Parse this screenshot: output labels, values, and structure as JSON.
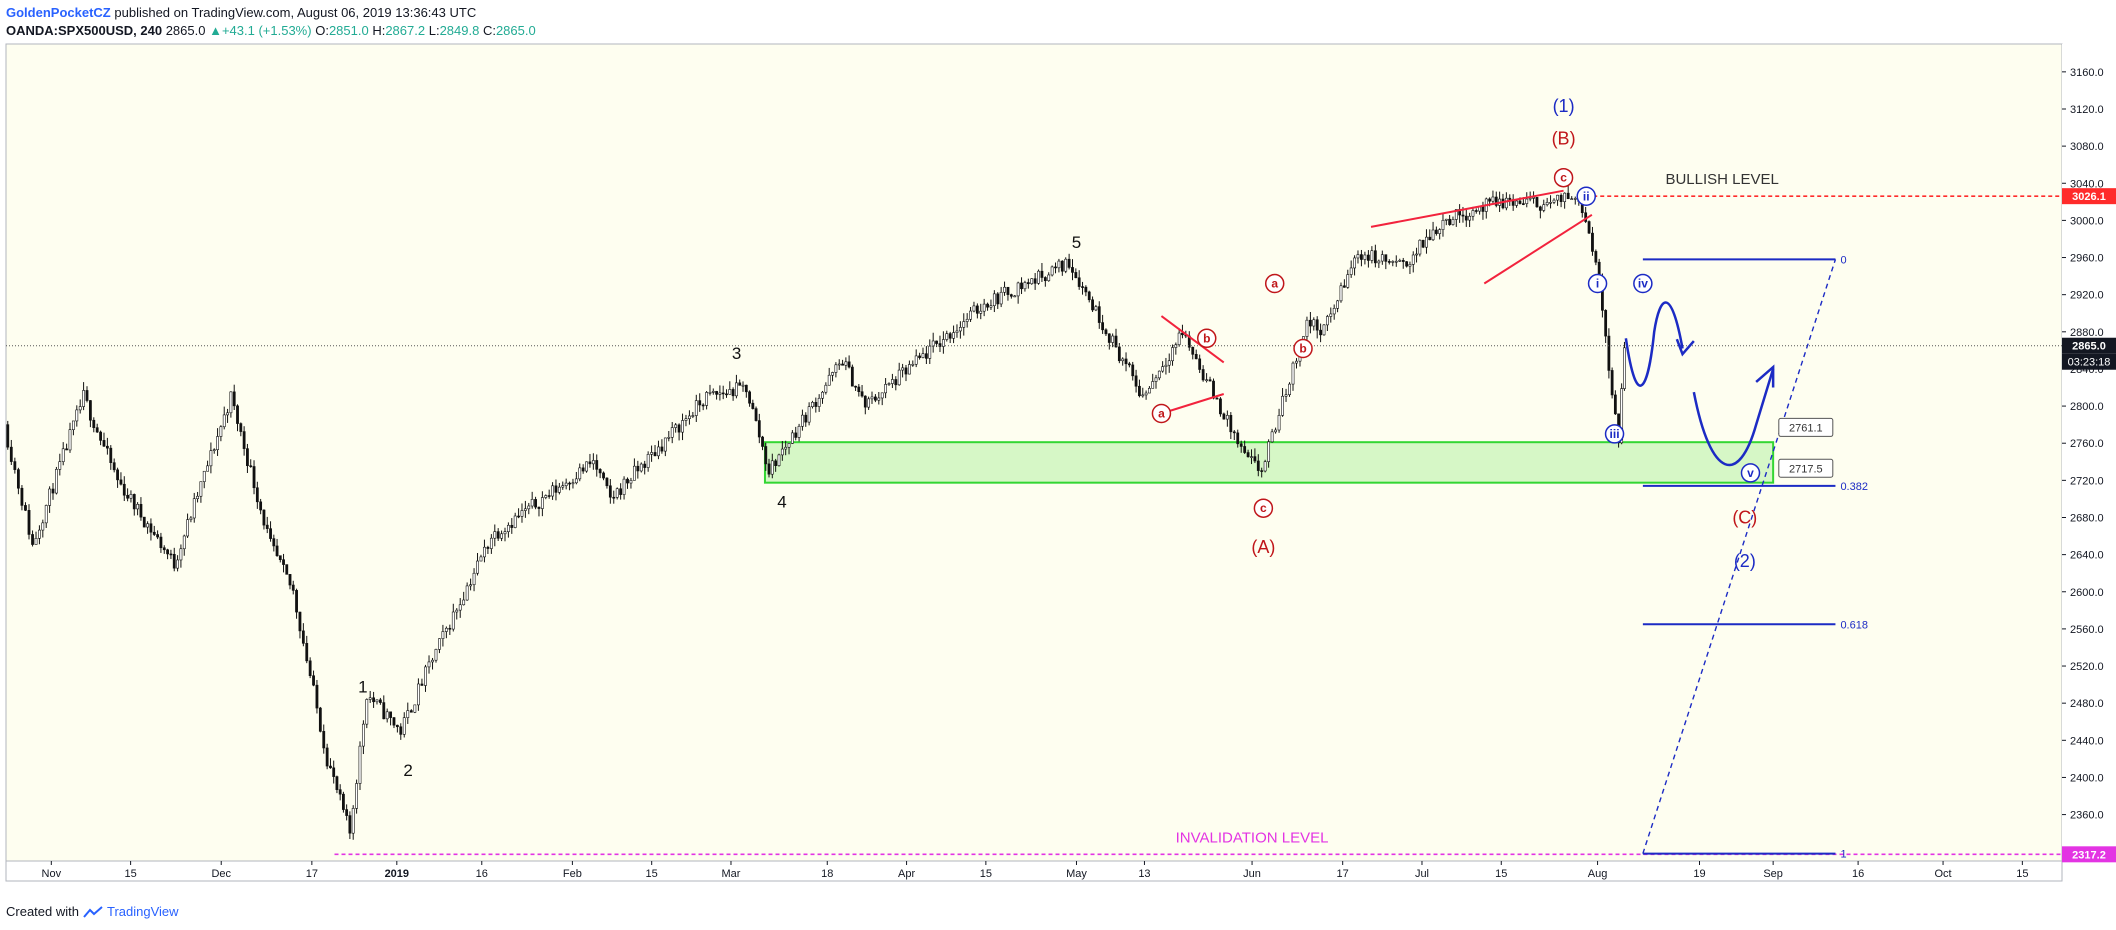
{
  "header": {
    "author": "GoldenPocketCZ",
    "published": "published on TradingView.com, August 06, 2019 13:36:43 UTC",
    "symbol": "OANDA:SPX500USD, 240",
    "last": "2865.0",
    "change": "+43.1 (+1.53%)",
    "o_label": "O:",
    "o": "2851.0",
    "h_label": "H:",
    "h": "2867.2",
    "l_label": "L:",
    "l": "2849.8",
    "c_label": "C:",
    "c": "2865.0"
  },
  "footer": {
    "created": "Created with",
    "brand": "TradingView"
  },
  "colors": {
    "background": "#fefef0",
    "candles": "#111111",
    "wave_red": "#c0161a",
    "wave_blue": "#1c2bc4",
    "trendline_red": "#f2233d",
    "zone_fill": "#d6f7c6",
    "zone_border": "#33d633",
    "bullish_line": "#ff2b2b",
    "invalidation": "#e334e3",
    "price_tag": "#131722"
  },
  "chart_data": {
    "type": "candlestick",
    "ylim": [
      2310,
      3190
    ],
    "yticks": [
      "3160.0",
      "3120.0",
      "3080.0",
      "3040.0",
      "3000.0",
      "2960.0",
      "2920.0",
      "2880.0",
      "2840.0",
      "2800.0",
      "2760.0",
      "2720.0",
      "2680.0",
      "2640.0",
      "2600.0",
      "2560.0",
      "2520.0",
      "2480.0",
      "2440.0",
      "2400.0",
      "2360.0"
    ],
    "xticks": [
      "Nov",
      "15",
      "Dec",
      "17",
      "2019",
      "16",
      "Feb",
      "15",
      "Mar",
      "18",
      "Apr",
      "15",
      "May",
      "13",
      "Jun",
      "17",
      "Jul",
      "15",
      "Aug",
      "19",
      "Sep",
      "16",
      "Oct",
      "15"
    ],
    "price_path": [
      [
        "2018-10-24",
        2780
      ],
      [
        "2018-10-29",
        2650
      ],
      [
        "2018-11-07",
        2810
      ],
      [
        "2018-11-13",
        2720
      ],
      [
        "2018-11-23",
        2630
      ],
      [
        "2018-12-03",
        2810
      ],
      [
        "2018-12-10",
        2650
      ],
      [
        "2018-12-14",
        2600
      ],
      [
        "2018-12-20",
        2420
      ],
      [
        "2018-12-24",
        2340
      ],
      [
        "2018-12-27",
        2490
      ],
      [
        "2019-01-02",
        2450
      ],
      [
        "2019-01-07",
        2520
      ],
      [
        "2019-01-18",
        2660
      ],
      [
        "2019-02-05",
        2740
      ],
      [
        "2019-02-08",
        2700
      ],
      [
        "2019-02-25",
        2810
      ],
      [
        "2019-03-04",
        2820
      ],
      [
        "2019-03-08",
        2730
      ],
      [
        "2019-03-21",
        2850
      ],
      [
        "2019-03-25",
        2800
      ],
      [
        "2019-04-15",
        2910
      ],
      [
        "2019-04-30",
        2955
      ],
      [
        "2019-05-13",
        2810
      ],
      [
        "2019-05-20",
        2880
      ],
      [
        "2019-05-31",
        2745
      ],
      [
        "2019-06-03",
        2730
      ],
      [
        "2019-06-11",
        2890
      ],
      [
        "2019-06-14",
        2882
      ],
      [
        "2019-06-20",
        2965
      ],
      [
        "2019-06-28",
        2950
      ],
      [
        "2019-07-05",
        3000
      ],
      [
        "2019-07-15",
        3020
      ],
      [
        "2019-07-24",
        3018
      ],
      [
        "2019-07-29",
        3028
      ],
      [
        "2019-08-01",
        2960
      ],
      [
        "2019-08-05",
        2760
      ],
      [
        "2019-08-06",
        2865
      ]
    ],
    "current_price": "2865.0",
    "countdown": "03:23:18",
    "levels": [
      {
        "label": "BULLISH LEVEL",
        "price": 3026.1,
        "tag": "3026.1"
      },
      {
        "label": "INVALIDATION LEVEL",
        "price": 2317.2,
        "tag": "2317.2"
      }
    ],
    "zone": {
      "top": 2761.1,
      "bottom": 2717.5,
      "top_label": "2761.1",
      "bottom_label": "2717.5"
    },
    "fibonacci": [
      {
        "label": "0",
        "price": 2958
      },
      {
        "label": "0.382",
        "price": 2714
      },
      {
        "label": "0.618",
        "price": 2565
      },
      {
        "label": "1",
        "price": 2318
      }
    ],
    "wave_labels": {
      "impulse": [
        {
          "text": "1",
          "date": "2018-12-26",
          "price": 2498
        },
        {
          "text": "2",
          "date": "2019-01-03",
          "price": 2408
        },
        {
          "text": "3",
          "date": "2019-03-02",
          "price": 2857
        },
        {
          "text": "4",
          "date": "2019-03-10",
          "price": 2697
        },
        {
          "text": "5",
          "date": "2019-05-01",
          "price": 2977
        }
      ],
      "red_circled": [
        {
          "text": "a",
          "date": "2019-05-16",
          "price": 2792
        },
        {
          "text": "b",
          "date": "2019-05-24",
          "price": 2873
        },
        {
          "text": "c",
          "date": "2019-06-03",
          "price": 2690
        },
        {
          "text": "a",
          "date": "2019-06-05",
          "price": 2932
        },
        {
          "text": "b",
          "date": "2019-06-10",
          "price": 2862
        },
        {
          "text": "c",
          "date": "2019-07-26",
          "price": 3046
        }
      ],
      "red_plain": [
        {
          "text": "(A)",
          "date": "2019-06-03",
          "price": 2648
        },
        {
          "text": "(B)",
          "date": "2019-07-26",
          "price": 3088
        },
        {
          "text": "(C)",
          "date": "2019-08-27",
          "price": 2680
        }
      ],
      "blue_circled": [
        {
          "text": "ii",
          "date": "2019-07-30",
          "price": 3026
        },
        {
          "text": "i",
          "date": "2019-08-01",
          "price": 2932
        },
        {
          "text": "iii",
          "date": "2019-08-04",
          "price": 2770
        },
        {
          "text": "iv",
          "date": "2019-08-09",
          "price": 2932
        },
        {
          "text": "v",
          "date": "2019-08-28",
          "price": 2728
        }
      ],
      "blue_plain": [
        {
          "text": "(1)",
          "date": "2019-07-26",
          "price": 3123
        },
        {
          "text": "(2)",
          "date": "2019-08-27",
          "price": 2633
        }
      ]
    }
  }
}
